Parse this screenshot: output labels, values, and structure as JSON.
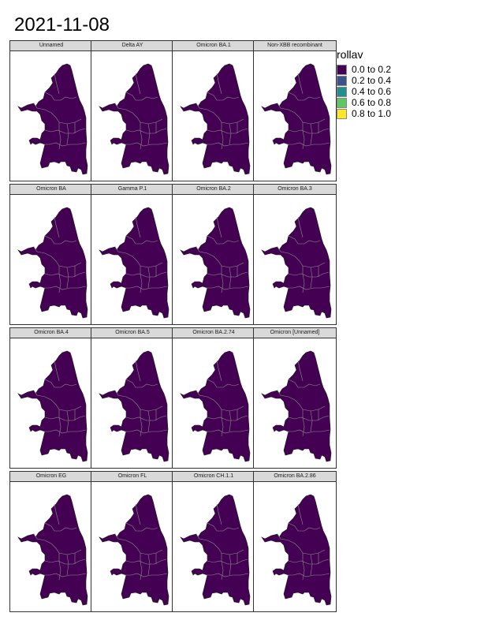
{
  "title": "2021-11-08",
  "fill_color": "#440154",
  "boundary_color": "#8c8c8c",
  "legend": {
    "title": "rollav",
    "items": [
      {
        "label": "0.0 to 0.2",
        "color": "#440154"
      },
      {
        "label": "0.2 to 0.4",
        "color": "#3B528B"
      },
      {
        "label": "0.4 to 0.6",
        "color": "#21908C"
      },
      {
        "label": "0.6 to 0.8",
        "color": "#5DC863"
      },
      {
        "label": "0.8 to 1.0",
        "color": "#FDE725"
      }
    ]
  },
  "panels": [
    {
      "label": "Unnamed",
      "category": "0.0 to 0.2"
    },
    {
      "label": "Delta AY",
      "category": "0.0 to 0.2"
    },
    {
      "label": "Omicron BA.1",
      "category": "0.0 to 0.2"
    },
    {
      "label": "Non-XBB recombinant",
      "category": "0.0 to 0.2"
    },
    {
      "label": "Omicron BA",
      "category": "0.0 to 0.2"
    },
    {
      "label": "Gamma P.1",
      "category": "0.0 to 0.2"
    },
    {
      "label": "Omicron BA.2",
      "category": "0.0 to 0.2"
    },
    {
      "label": "Omicron BA.3",
      "category": "0.0 to 0.2"
    },
    {
      "label": "Omicron BA.4",
      "category": "0.0 to 0.2"
    },
    {
      "label": "Omicron BA.5",
      "category": "0.0 to 0.2"
    },
    {
      "label": "Omicron BA.2.74",
      "category": "0.0 to 0.2"
    },
    {
      "label": "Omicron [Unnamed]",
      "category": "0.0 to 0.2"
    },
    {
      "label": "Omicron EG",
      "category": "0.0 to 0.2"
    },
    {
      "label": "Omicron FL",
      "category": "0.0 to 0.2"
    },
    {
      "label": "Omicron CH.1.1",
      "category": "0.0 to 0.2"
    },
    {
      "label": "Omicron BA.2.86",
      "category": "0.0 to 0.2"
    }
  ]
}
